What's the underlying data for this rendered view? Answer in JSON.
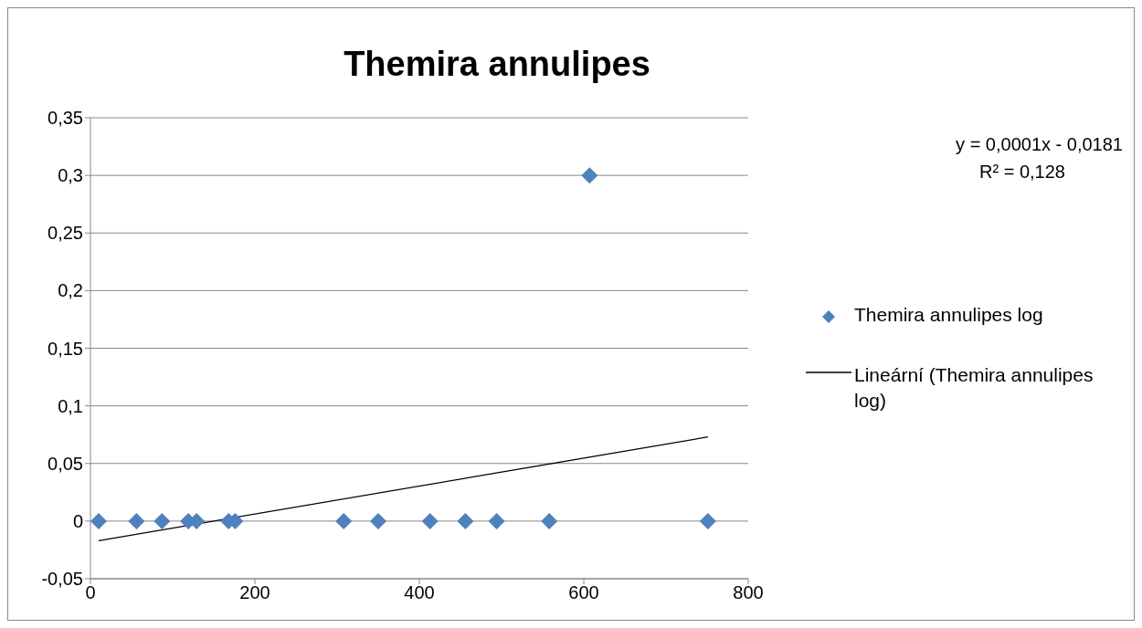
{
  "chart_data": {
    "type": "scatter",
    "title": "Themira annulipes",
    "annotations": [
      "y = 0,0001x - 0,0181",
      "R² = 0,128"
    ],
    "series": [
      {
        "name": "Themira annulipes log",
        "color": "#4f81bd",
        "marker": "diamond",
        "x": [
          10,
          56,
          87,
          119,
          129,
          168,
          176,
          308,
          350,
          413,
          456,
          494,
          558,
          607,
          751
        ],
        "values": [
          0,
          0,
          0,
          0,
          0,
          0,
          0,
          0,
          0,
          0,
          0,
          0,
          0,
          0.3,
          0
        ]
      },
      {
        "name": "Lineární (Themira annulipes log)",
        "type": "line",
        "color": "#000000",
        "marker": "none",
        "x": [
          10,
          751
        ],
        "values": [
          -0.017,
          0.073
        ]
      }
    ],
    "xlim": [
      0,
      800
    ],
    "xticks": [
      0,
      200,
      400,
      600,
      800
    ],
    "ylim": [
      -0.05,
      0.35
    ],
    "yticks": [
      {
        "value": -0.05,
        "label": "-0,05"
      },
      0,
      {
        "value": 0.05,
        "label": "0,05"
      },
      {
        "value": 0.1,
        "label": "0,1"
      },
      {
        "value": 0.15,
        "label": "0,15"
      },
      {
        "value": 0.2,
        "label": "0,2"
      },
      {
        "value": 0.25,
        "label": "0,25"
      },
      {
        "value": 0.3,
        "label": "0,3"
      },
      {
        "value": 0.35,
        "label": "0,35"
      }
    ],
    "grid": "y",
    "legend": "right"
  }
}
